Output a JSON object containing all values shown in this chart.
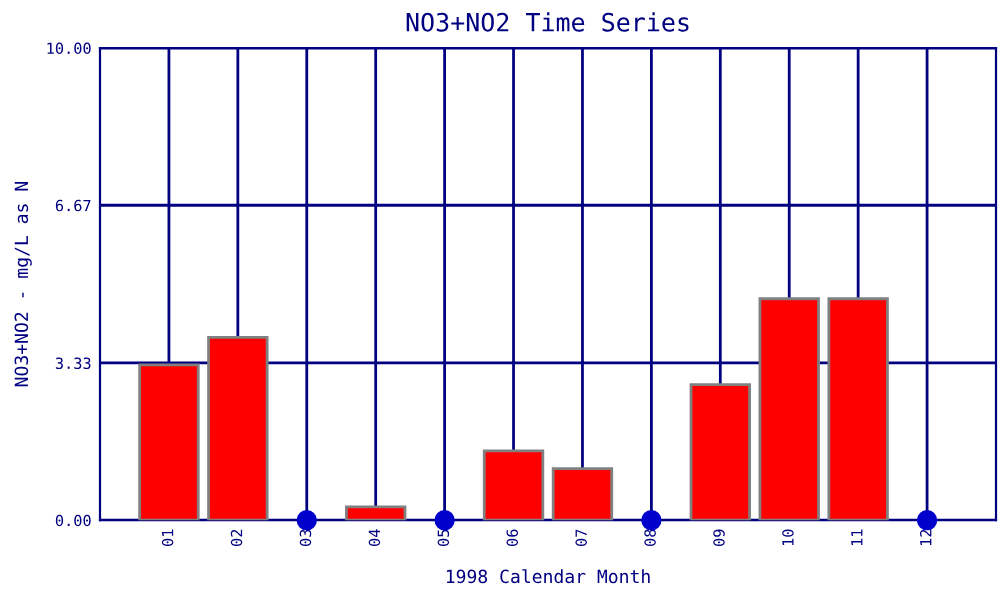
{
  "chart_data": {
    "type": "bar",
    "title": "NO3+NO2 Time Series",
    "xlabel": "1998 Calendar Month",
    "ylabel": "NO3+NO2 - mg/L as N",
    "categories": [
      "01",
      "02",
      "03",
      "04",
      "05",
      "06",
      "07",
      "08",
      "09",
      "10",
      "11",
      "12"
    ],
    "series": [
      {
        "color": "#ff0000",
        "values": [
          3.29,
          3.87,
          null,
          0.28,
          null,
          1.47,
          1.09,
          null,
          2.87,
          4.69,
          4.69,
          null
        ]
      },
      {
        "type": "scatter",
        "color": "#0000cc",
        "x": [
          "03",
          "05",
          "08",
          "12"
        ],
        "values": [
          0,
          0,
          0,
          0
        ]
      }
    ],
    "ylim": [
      0,
      10
    ],
    "yticks": [
      {
        "value": 0,
        "label": "0.00"
      },
      {
        "value": 3.33,
        "label": "3.33"
      },
      {
        "value": 6.67,
        "label": "6.67"
      },
      {
        "value": 10,
        "label": "10.00"
      }
    ],
    "grid": true,
    "marker": "circle"
  }
}
